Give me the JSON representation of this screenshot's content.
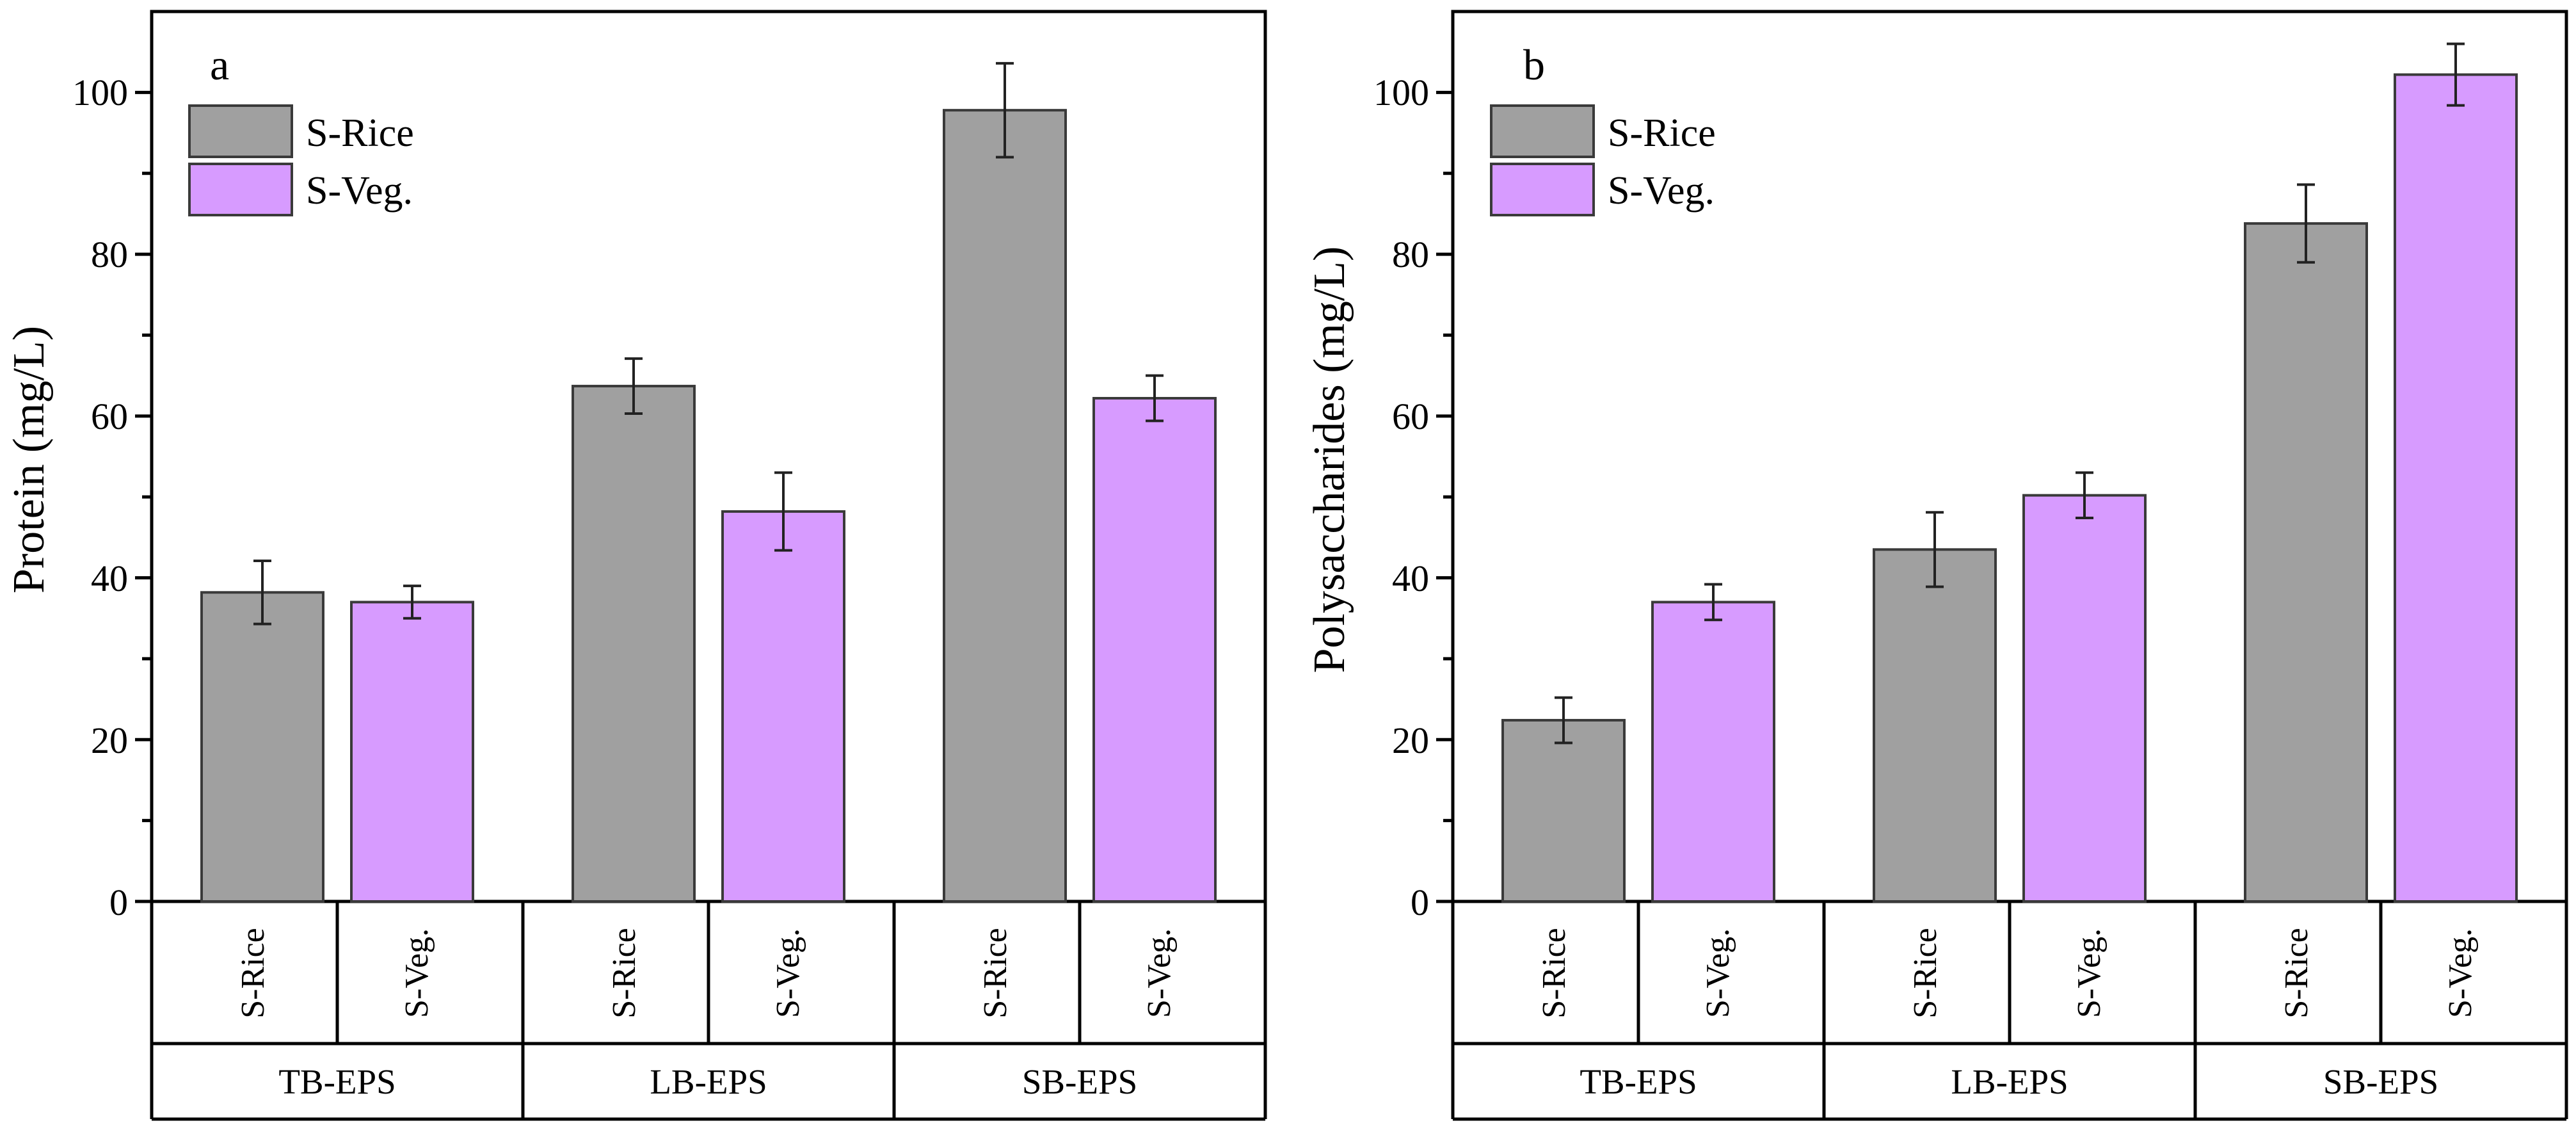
{
  "colors": {
    "s_rice": "#a0a0a0",
    "s_veg": "#d79bff"
  },
  "chart_data": [
    {
      "type": "bar",
      "panel_label": "a",
      "ylabel": "Protein (mg/L)",
      "ylim": [
        0,
        110
      ],
      "yticks": [
        0,
        20,
        40,
        60,
        80,
        100
      ],
      "groups": [
        "TB-EPS",
        "LB-EPS",
        "SB-EPS"
      ],
      "category_labels": [
        "S-Rice",
        "S-Veg."
      ],
      "legend": {
        "position": "top-left"
      },
      "series": [
        {
          "name": "S-Rice",
          "values": [
            38.2,
            63.7,
            97.8
          ],
          "errors": [
            3.9,
            3.4,
            5.8
          ]
        },
        {
          "name": "S-Veg.",
          "values": [
            37.0,
            48.2,
            62.2
          ],
          "errors": [
            2.0,
            4.8,
            2.8
          ]
        }
      ]
    },
    {
      "type": "bar",
      "panel_label": "b",
      "ylabel": "Polysaccharides (mg/L)",
      "ylim": [
        0,
        110
      ],
      "yticks": [
        0,
        20,
        40,
        60,
        80,
        100
      ],
      "groups": [
        "TB-EPS",
        "LB-EPS",
        "SB-EPS"
      ],
      "category_labels": [
        "S-Rice",
        "S-Veg."
      ],
      "legend": {
        "position": "top-left"
      },
      "series": [
        {
          "name": "S-Rice",
          "values": [
            22.4,
            43.5,
            83.8
          ],
          "errors": [
            2.8,
            4.6,
            4.8
          ]
        },
        {
          "name": "S-Veg.",
          "values": [
            37.0,
            50.2,
            102.2
          ],
          "errors": [
            2.2,
            2.8,
            3.8
          ]
        }
      ]
    }
  ]
}
